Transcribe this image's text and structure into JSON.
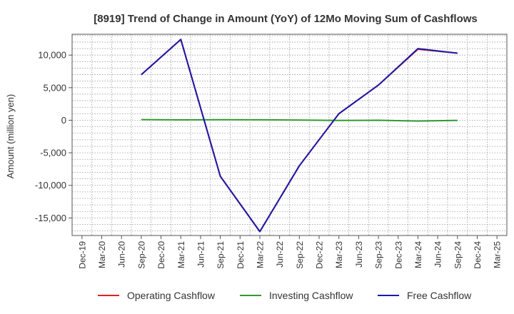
{
  "chart_data": {
    "type": "line",
    "title": "[8919]  Trend of Change in Amount (YoY) of 12Mo Moving Sum of Cashflows",
    "ylabel": "Amount (million yen)",
    "xlabel": "",
    "ylim": [
      -17700,
      13200
    ],
    "yticks": [
      10000,
      5000,
      0,
      -5000,
      -10000,
      -15000
    ],
    "ytick_labels": [
      "10,000",
      "5,000",
      "0",
      "-5,000",
      "-10,000",
      "-15,000"
    ],
    "categories": [
      "Dec-19",
      "Mar-20",
      "Jun-20",
      "Sep-20",
      "Dec-20",
      "Mar-21",
      "Jun-21",
      "Sep-21",
      "Dec-21",
      "Mar-22",
      "Jun-22",
      "Sep-22",
      "Dec-22",
      "Mar-23",
      "Jun-23",
      "Sep-23",
      "Dec-23",
      "Mar-24",
      "Jun-24",
      "Sep-24",
      "Dec-24",
      "Mar-25"
    ],
    "grid": true,
    "legend_position": "bottom",
    "series": [
      {
        "name": "Operating Cashflow",
        "color": "#dd2222",
        "values": [
          null,
          null,
          null,
          7000,
          null,
          12400,
          null,
          -8600,
          null,
          -17100,
          null,
          -7000,
          null,
          1000,
          null,
          5400,
          null,
          10900,
          null,
          10300,
          null,
          null
        ]
      },
      {
        "name": "Investing Cashflow",
        "color": "#339933",
        "values": [
          null,
          null,
          null,
          100,
          null,
          50,
          null,
          80,
          null,
          60,
          null,
          20,
          null,
          -30,
          null,
          0,
          null,
          -120,
          null,
          -30,
          null,
          null
        ]
      },
      {
        "name": "Free Cashflow",
        "color": "#1a1aaa",
        "values": [
          null,
          null,
          null,
          7000,
          null,
          12400,
          null,
          -8600,
          null,
          -17100,
          null,
          -7000,
          null,
          1000,
          null,
          5400,
          null,
          11000,
          null,
          10300,
          null,
          null
        ]
      }
    ]
  }
}
